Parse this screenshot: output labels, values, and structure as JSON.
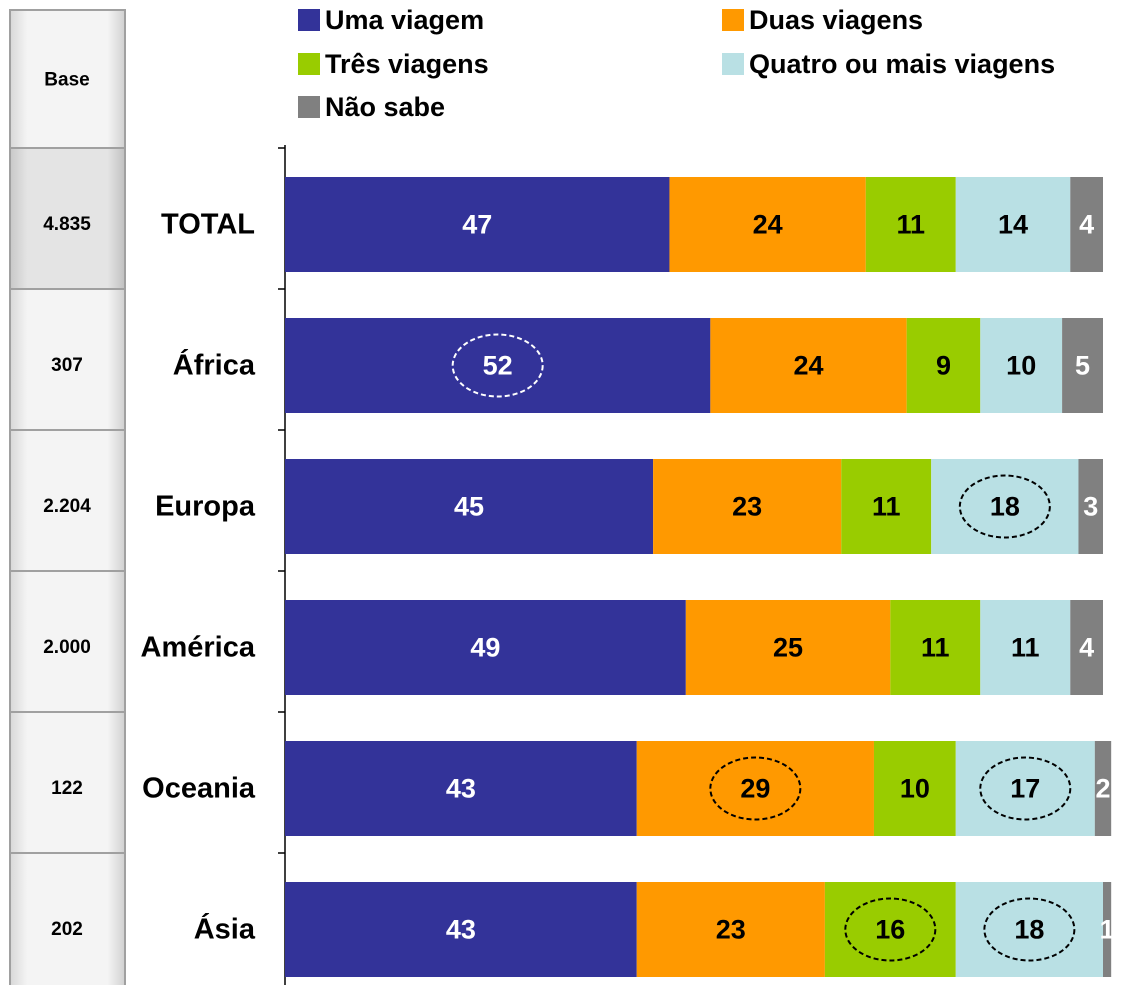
{
  "chart_data": {
    "type": "stacked-bar-horizontal",
    "base_header": "Base",
    "base": [
      "4.835",
      "307",
      "2.204",
      "2.000",
      "122",
      "202"
    ],
    "categories": [
      "TOTAL",
      "África",
      "Europa",
      "América",
      "Oceania",
      "Ásia"
    ],
    "xlim": [
      0,
      100
    ],
    "series": [
      {
        "name": "Uma viagem",
        "color": "#333399",
        "text_color": "#ffffff",
        "values": [
          47,
          52,
          45,
          49,
          43,
          43
        ],
        "circled": [
          false,
          true,
          false,
          false,
          false,
          false
        ]
      },
      {
        "name": "Duas viagens",
        "color": "#ff9900",
        "text_color": "#000000",
        "values": [
          24,
          24,
          23,
          25,
          29,
          23
        ],
        "circled": [
          false,
          false,
          false,
          false,
          true,
          false
        ]
      },
      {
        "name": "Três viagens",
        "color": "#99cc00",
        "text_color": "#000000",
        "values": [
          11,
          9,
          11,
          11,
          10,
          16
        ],
        "circled": [
          false,
          false,
          false,
          false,
          false,
          true
        ]
      },
      {
        "name": "Quatro ou mais viagens",
        "color": "#b9e0e4",
        "text_color": "#000000",
        "values": [
          14,
          10,
          18,
          11,
          17,
          18
        ],
        "circled": [
          false,
          false,
          true,
          false,
          true,
          true
        ]
      },
      {
        "name": "Não sabe",
        "color": "#808080",
        "text_color": "#ffffff",
        "values": [
          4,
          5,
          3,
          4,
          2,
          1
        ],
        "circled": [
          false,
          false,
          false,
          false,
          false,
          false
        ]
      }
    ]
  }
}
